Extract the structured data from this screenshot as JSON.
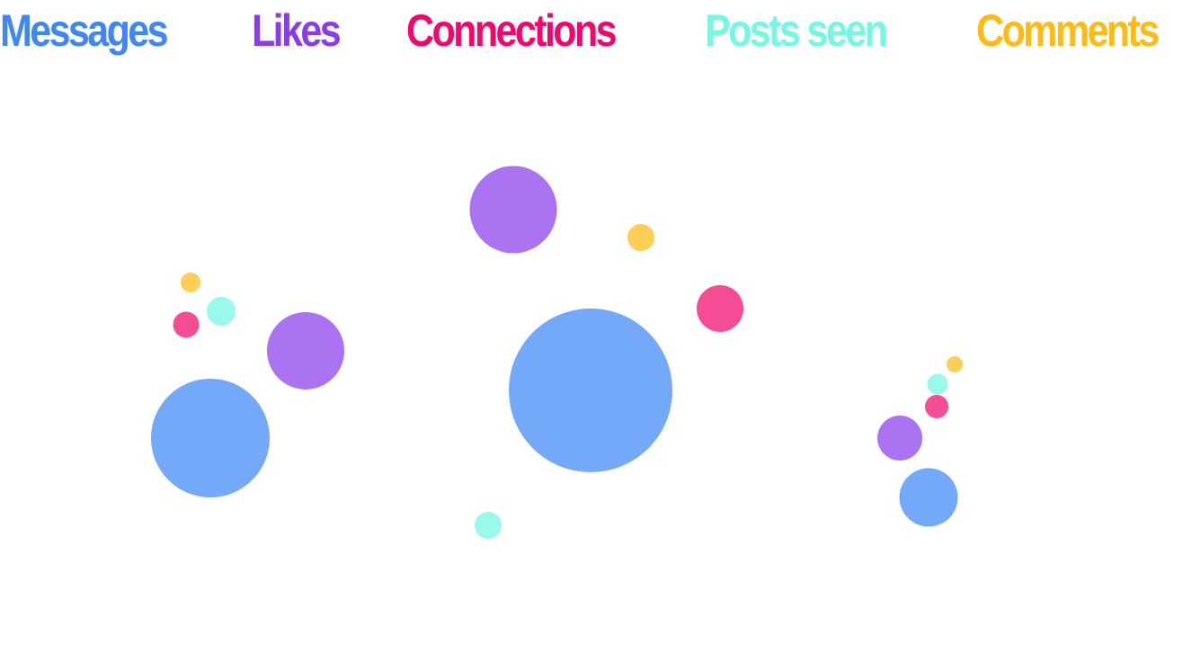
{
  "chart_data": {
    "type": "bubble",
    "title": "",
    "series": [
      {
        "name": "Messages",
        "color": "#3f87f5"
      },
      {
        "name": "Likes",
        "color": "#8a3cec"
      },
      {
        "name": "Connections",
        "color": "#f1076e"
      },
      {
        "name": "Posts seen",
        "color": "#72f8e3"
      },
      {
        "name": "Comments",
        "color": "#fdbb13"
      }
    ],
    "groups": [
      {
        "values": {
          "Messages": 132,
          "Likes": 86,
          "Connections": 29,
          "Posts seen": 32,
          "Comments": 22
        }
      },
      {
        "values": {
          "Messages": 182,
          "Likes": 97,
          "Connections": 52,
          "Posts seen": 30,
          "Comments": 30
        }
      },
      {
        "values": {
          "Messages": 65,
          "Likes": 50,
          "Connections": 26,
          "Posts seen": 23,
          "Comments": 18
        }
      }
    ],
    "legend_position": "top",
    "grid": false,
    "axes": false
  }
}
